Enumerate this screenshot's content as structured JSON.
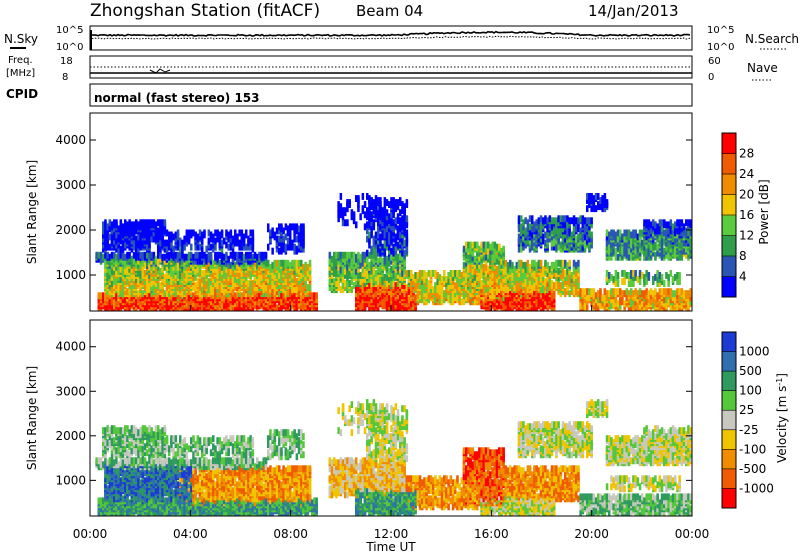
{
  "header": {
    "station": "Zhongshan Station (fitACF)",
    "beam": "Beam 04",
    "date": "14/Jan/2013"
  },
  "noise_panel": {
    "left_label": "N.Sky",
    "right_label": "N.Search",
    "left_ticks": [
      "10^5",
      "10^0"
    ],
    "right_ticks": [
      "10^5",
      "10^0"
    ]
  },
  "freq_panel": {
    "left_label_1": "Freq.",
    "left_label_2": "[MHz]",
    "left_ticks": [
      "18",
      "8"
    ],
    "right_label": "Nave",
    "right_ticks": [
      "60",
      "0"
    ]
  },
  "cpid": {
    "label": "CPID",
    "text": "normal (fast stereo) 153"
  },
  "x_axis": {
    "ticks": [
      "00:00",
      "04:00",
      "08:00",
      "12:00",
      "16:00",
      "20:00",
      "00:00"
    ],
    "label": "Time UT"
  },
  "colors": {
    "power": [
      "#0000ff",
      "#2a55b4",
      "#2f9e4a",
      "#5acb3c",
      "#f0c400",
      "#f08c00",
      "#f05a00",
      "#ff0000"
    ],
    "velocity": [
      "#1c3ad4",
      "#2f6fb0",
      "#2f9a60",
      "#55c83a",
      "#c8c8c0",
      "#f0c400",
      "#f08c00",
      "#f05a00",
      "#ff0000"
    ]
  },
  "chart_data": [
    {
      "type": "heatmap",
      "name": "power",
      "ylabel": "Slant Range [km]",
      "yticks": [
        "1000",
        "2000",
        "3000",
        "4000"
      ],
      "ylim": [
        200,
        4600
      ],
      "xlim_hours": [
        0,
        24
      ],
      "colorbar_label": "Power [dB]",
      "colorbar_ticks": [
        "4",
        "8",
        "12",
        "16",
        "20",
        "24",
        "28"
      ],
      "colorbar_range": [
        0,
        32
      ]
    },
    {
      "type": "heatmap",
      "name": "velocity",
      "ylabel": "Slant Range [km]",
      "yticks": [
        "1000",
        "2000",
        "3000",
        "4000"
      ],
      "ylim": [
        200,
        4600
      ],
      "xlim_hours": [
        0,
        24
      ],
      "colorbar_label": "Velocity [m s",
      "colorbar_label_sup": "-1",
      "colorbar_label_end": "]",
      "colorbar_ticks": [
        "1000",
        "500",
        "100",
        "25",
        "-25",
        "-100",
        "-500",
        "-1000"
      ]
    }
  ]
}
